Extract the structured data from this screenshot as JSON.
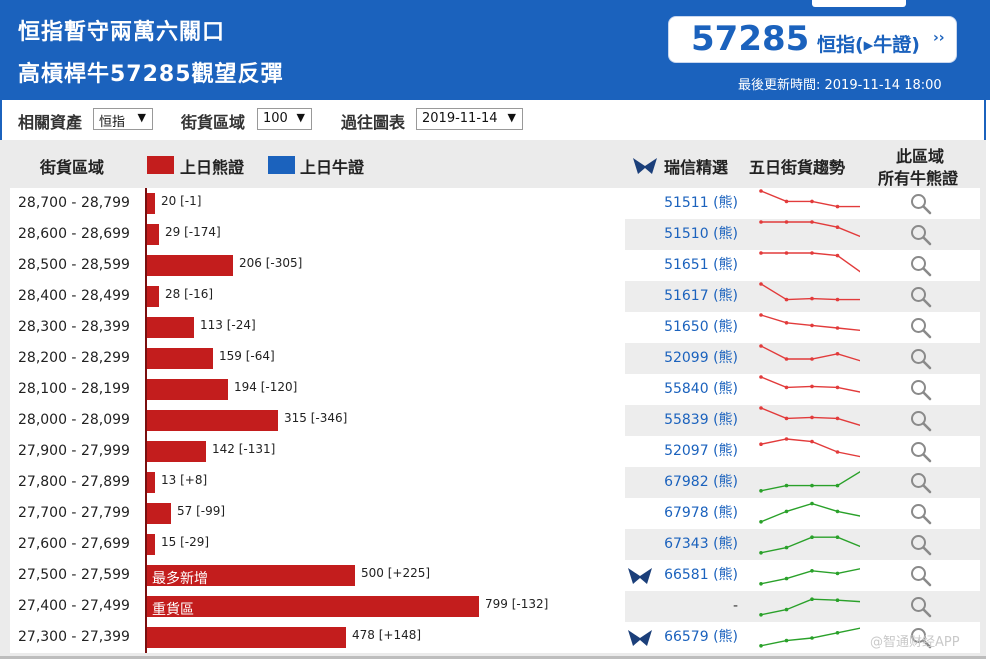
{
  "header": {
    "headline_line1": "恒指暫守兩萬六關口",
    "headline_line2": "高槓桿牛57285觀望反彈",
    "index_code": "57285",
    "index_label": "恒指(▸牛證)",
    "index_arrow": "››",
    "updated": "最後更新時間: 2019-11-14 18:00"
  },
  "filters": {
    "asset_label": "相關資產",
    "asset_value": "恒指",
    "zone_label": "街貨區域",
    "zone_value": "100",
    "history_label": "過往圖表",
    "history_value": "2019-11-14"
  },
  "columns": {
    "zone": "街貨區域",
    "bear_legend": "上日熊證",
    "bull_legend": "上日牛證",
    "picks": "瑞信精選",
    "trend": "五日街貨趨勢",
    "all_line1": "此區域",
    "all_line2": "所有牛熊證"
  },
  "colors": {
    "header_bg": "#1b62bd",
    "bear": "#c31d1d",
    "bull": "#1b62bd",
    "trend_down": "#e23b3b",
    "trend_up": "#2aa12a"
  },
  "max_bar_value": 799,
  "rows": [
    {
      "range": "28,700 - 28,799",
      "value": 20,
      "change": "-1",
      "label": "20 [-1]",
      "tag": "",
      "pick": "51511 (熊)",
      "logo": false,
      "trend_type": "down",
      "trend": [
        5,
        3,
        3,
        2,
        2
      ]
    },
    {
      "range": "28,600 - 28,699",
      "value": 29,
      "change": "-174",
      "label": "29 [-174]",
      "tag": "",
      "pick": "51510 (熊)",
      "logo": false,
      "trend_type": "down",
      "trend": [
        5,
        5,
        5,
        4,
        2
      ]
    },
    {
      "range": "28,500 - 28,599",
      "value": 206,
      "change": "-305",
      "label": "206 [-305]",
      "tag": "",
      "pick": "51651 (熊)",
      "logo": false,
      "trend_type": "down",
      "trend": [
        5,
        5,
        5,
        4.5,
        1
      ]
    },
    {
      "range": "28,400 - 28,499",
      "value": 28,
      "change": "-16",
      "label": "28 [-16]",
      "tag": "",
      "pick": "51617 (熊)",
      "logo": false,
      "trend_type": "down",
      "trend": [
        5,
        2,
        2.2,
        2,
        2
      ]
    },
    {
      "range": "28,300 - 28,399",
      "value": 113,
      "change": "-24",
      "label": "113 [-24]",
      "tag": "",
      "pick": "51650 (熊)",
      "logo": false,
      "trend_type": "down",
      "trend": [
        5,
        3.5,
        3,
        2.5,
        2
      ]
    },
    {
      "range": "28,200 - 28,299",
      "value": 159,
      "change": "-64",
      "label": "159 [-64]",
      "tag": "",
      "pick": "52099 (熊)",
      "logo": false,
      "trend_type": "down",
      "trend": [
        5,
        2.5,
        2.5,
        3.5,
        2
      ]
    },
    {
      "range": "28,100 - 28,199",
      "value": 194,
      "change": "-120",
      "label": "194 [-120]",
      "tag": "",
      "pick": "55840 (熊)",
      "logo": false,
      "trend_type": "down",
      "trend": [
        5,
        3,
        3.2,
        3,
        2
      ]
    },
    {
      "range": "28,000 - 28,099",
      "value": 315,
      "change": "-346",
      "label": "315 [-346]",
      "tag": "",
      "pick": "55839 (熊)",
      "logo": false,
      "trend_type": "down",
      "trend": [
        5,
        3,
        3.2,
        3,
        1.5
      ]
    },
    {
      "range": "27,900 - 27,999",
      "value": 142,
      "change": "-131",
      "label": "142 [-131]",
      "tag": "",
      "pick": "52097 (熊)",
      "logo": false,
      "trend_type": "down",
      "trend": [
        4,
        5,
        4.5,
        2.5,
        1.5
      ]
    },
    {
      "range": "27,800 - 27,899",
      "value": 13,
      "change": "+8",
      "label": "13 [+8]",
      "tag": "",
      "pick": "67982 (熊)",
      "logo": false,
      "trend_type": "up",
      "trend": [
        1,
        2,
        2,
        2,
        5
      ]
    },
    {
      "range": "27,700 - 27,799",
      "value": 57,
      "change": "-99",
      "label": "57 [-99]",
      "tag": "",
      "pick": "67978 (熊)",
      "logo": false,
      "trend_type": "up",
      "trend": [
        1,
        3,
        4.5,
        3,
        2
      ]
    },
    {
      "range": "27,600 - 27,699",
      "value": 15,
      "change": "-29",
      "label": "15 [-29]",
      "tag": "",
      "pick": "67343 (熊)",
      "logo": false,
      "trend_type": "up",
      "trend": [
        1,
        2,
        4,
        4,
        2
      ]
    },
    {
      "range": "27,500 - 27,599",
      "value": 500,
      "change": "+225",
      "label": "500 [+225]",
      "tag": "最多新增",
      "pick": "66581 (熊)",
      "logo": true,
      "trend_type": "up",
      "trend": [
        1,
        2,
        3.5,
        3,
        4
      ]
    },
    {
      "range": "27,400 - 27,499",
      "value": 799,
      "change": "-132",
      "label": "799 [-132]",
      "tag": "重貨區",
      "pick": "-",
      "logo": false,
      "trend_type": "up",
      "trend": [
        1,
        2,
        4,
        3.8,
        3.5
      ]
    },
    {
      "range": "27,300 - 27,399",
      "value": 478,
      "change": "+148",
      "label": "478 [+148]",
      "tag": "",
      "pick": "66579 (熊)",
      "logo": true,
      "trend_type": "up",
      "trend": [
        1,
        2,
        2.5,
        3.5,
        4.5
      ]
    }
  ],
  "watermark": "@智通财经APP"
}
